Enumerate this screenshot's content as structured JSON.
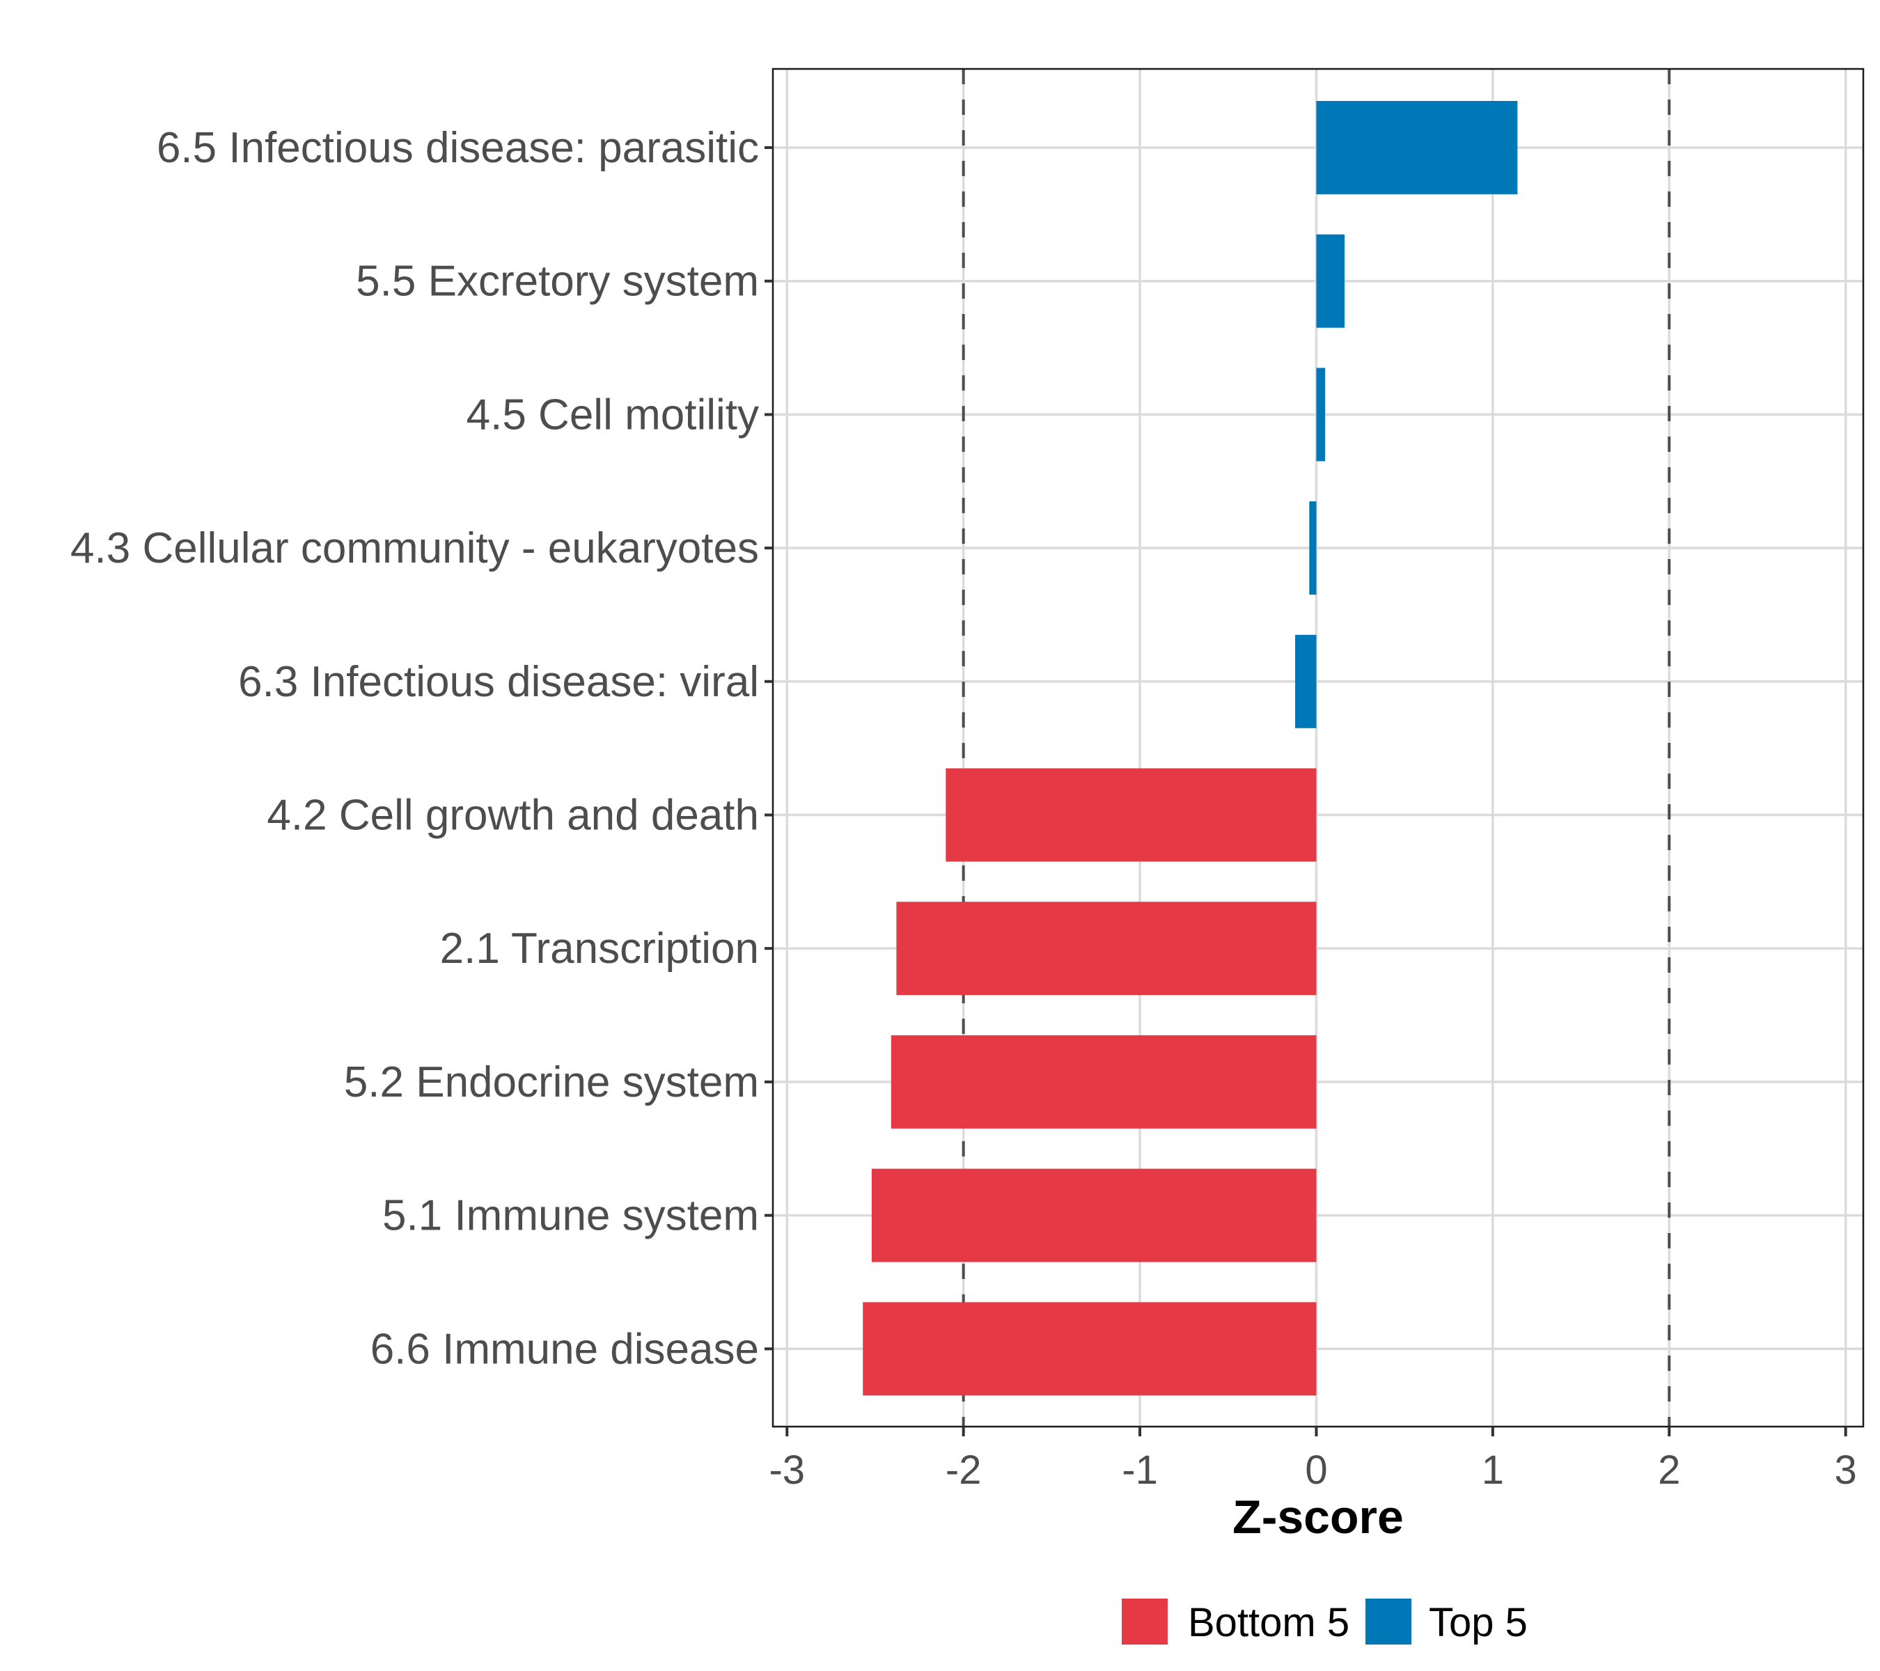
{
  "chart_data": {
    "type": "bar",
    "orientation": "horizontal",
    "title": "",
    "xlabel": "Z-score",
    "ylabel": "",
    "xlim": [
      -3.08,
      3.1
    ],
    "xticks": [
      -3,
      -2,
      -1,
      0,
      1,
      2,
      3
    ],
    "xtick_labels": [
      "-3",
      "-2",
      "-1",
      "0",
      "1",
      "2",
      "3"
    ],
    "grid": true,
    "reference_lines": [
      {
        "x": -2,
        "style": "dashed",
        "color": "#4d4d4d"
      },
      {
        "x": 2,
        "style": "dashed",
        "color": "#4d4d4d"
      }
    ],
    "categories": [
      "6.5 Infectious disease: parasitic",
      "5.5 Excretory system",
      "4.5 Cell motility",
      "4.3 Cellular community - eukaryotes",
      "6.3 Infectious disease: viral",
      "4.2 Cell growth and death",
      "2.1 Transcription",
      "5.2 Endocrine system",
      "5.1 Immune system",
      "6.6 Immune disease"
    ],
    "values": [
      1.14,
      0.16,
      0.05,
      -0.04,
      -0.12,
      -2.1,
      -2.38,
      -2.41,
      -2.52,
      -2.57
    ],
    "groups": [
      "Top 5",
      "Top 5",
      "Top 5",
      "Top 5",
      "Top 5",
      "Bottom 5",
      "Bottom 5",
      "Bottom 5",
      "Bottom 5",
      "Bottom 5"
    ],
    "legend": {
      "placement": "bottom",
      "entries": [
        {
          "label": "Bottom 5",
          "color": "#e63946"
        },
        {
          "label": "Top 5",
          "color": "#0077b6"
        }
      ]
    },
    "colors": {
      "Top 5": "#0077b6",
      "Bottom 5": "#e63946"
    }
  }
}
